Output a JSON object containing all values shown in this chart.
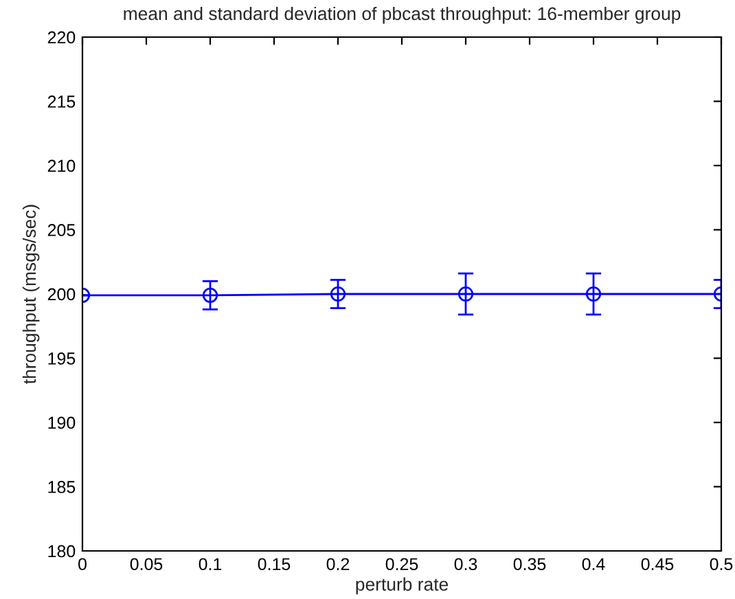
{
  "chart_data": {
    "type": "line",
    "title": "mean and standard deviation of pbcast throughput: 16-member group",
    "xlabel": "perturb rate",
    "ylabel": "throughput (msgs/sec)",
    "x": [
      0,
      0.1,
      0.2,
      0.3,
      0.4,
      0.5
    ],
    "series": [
      {
        "color": "#0000ff",
        "values": [
          199.9,
          199.9,
          200.0,
          200.0,
          200.0,
          200.0
        ],
        "errors": [
          0,
          1.1,
          1.1,
          1.6,
          1.6,
          1.1
        ]
      }
    ],
    "marker": "circle",
    "line_style": "solid",
    "xlim": [
      0,
      0.5
    ],
    "xticks": [
      0,
      0.05,
      0.1,
      0.15,
      0.2,
      0.25,
      0.3,
      0.35,
      0.4,
      0.45,
      0.5
    ],
    "ylim": [
      180,
      220
    ],
    "yticks": [
      180,
      185,
      190,
      195,
      200,
      205,
      210,
      215,
      220
    ],
    "grid": false
  }
}
